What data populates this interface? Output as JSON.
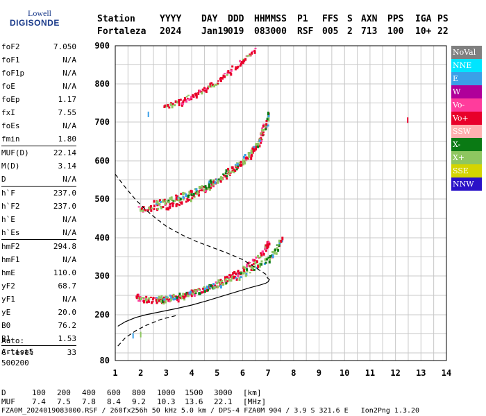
{
  "logo": {
    "line1": "Lowell",
    "line2": "DIGISONDE"
  },
  "header": {
    "labels": [
      "Station",
      "YYYY",
      "DAY",
      "DDD",
      "HHMMSS",
      "P1",
      "FFS",
      "S",
      "AXN",
      "PPS",
      "IGA",
      "PS"
    ],
    "values": [
      "Fortaleza",
      "2024",
      "Jan19",
      "019",
      "083000",
      "RSF",
      "005",
      "2",
      "713",
      "100",
      "10+",
      "22"
    ]
  },
  "params": [
    [
      [
        "foF2",
        "7.050"
      ],
      [
        "foF1",
        "N/A"
      ],
      [
        "foF1p",
        "N/A"
      ],
      [
        "foE",
        "N/A"
      ],
      [
        "foEp",
        "1.17"
      ],
      [
        "fxI",
        "7.55"
      ],
      [
        "foEs",
        "N/A"
      ],
      [
        "fmin",
        "1.80"
      ]
    ],
    [
      [
        "MUF(D)",
        "22.14"
      ],
      [
        "M(D)",
        "3.14"
      ],
      [
        "D",
        "N/A"
      ]
    ],
    [
      [
        "h`F",
        "237.0"
      ],
      [
        "h`F2",
        "237.0"
      ],
      [
        "h`E",
        "N/A"
      ],
      [
        "h`Es",
        "N/A"
      ]
    ],
    [
      [
        "hmF2",
        "294.8"
      ],
      [
        "hmF1",
        "N/A"
      ],
      [
        "hmE",
        "110.0"
      ],
      [
        "yF2",
        "68.7"
      ],
      [
        "yF1",
        "N/A"
      ],
      [
        "yE",
        "20.0"
      ],
      [
        "B0",
        "76.2"
      ],
      [
        "B1",
        "1.53"
      ]
    ],
    [
      [
        "C-level",
        "33"
      ]
    ]
  ],
  "auto": {
    "line1": "Auto:",
    "line2": "Artist5",
    "line3": "500200"
  },
  "legend": [
    {
      "label": "NoVal",
      "bg": "#808080",
      "fg": "#ffffff"
    },
    {
      "label": "NNE",
      "bg": "#00e5ff",
      "fg": "#ffffff"
    },
    {
      "label": "E",
      "bg": "#3aa0e8",
      "fg": "#ffffff"
    },
    {
      "label": "W",
      "bg": "#b0009a",
      "fg": "#ffffff"
    },
    {
      "label": "Vo-",
      "bg": "#ff3c9c",
      "fg": "#ffffff"
    },
    {
      "label": "Vo+",
      "bg": "#e8002a",
      "fg": "#ffffff"
    },
    {
      "label": "SSW",
      "bg": "#ffb0b0",
      "fg": "#ffffff"
    },
    {
      "label": "X-",
      "bg": "#0a7a14",
      "fg": "#ffffff"
    },
    {
      "label": "X+",
      "bg": "#8ec660",
      "fg": "#ffffff"
    },
    {
      "label": "SSE",
      "bg": "#d4d400",
      "fg": "#ffffff"
    },
    {
      "label": "NNW",
      "bg": "#2a12c8",
      "fg": "#ffffff"
    }
  ],
  "footer": {
    "d_label": "D",
    "d_values": [
      "100",
      "200",
      "400",
      "600",
      "800",
      "1000",
      "1500",
      "3000"
    ],
    "d_unit": "[km]",
    "muf_label": "MUF",
    "muf_values": [
      "7.4",
      "7.5",
      "7.8",
      "8.4",
      "9.2",
      "10.3",
      "13.6",
      "22.1"
    ],
    "muf_unit": "[MHz]",
    "info": "FZA0M_2024019083000.RSF / 260fx256h 50 kHz 5.0 km / DPS-4 FZA0M 904 / 3.9 S 321.6 E   Ion2Png 1.3.20"
  },
  "chart_data": {
    "type": "scatter",
    "title": "",
    "xlabel": "",
    "ylabel": "",
    "xlim": [
      1,
      14
    ],
    "ylim": [
      80,
      900
    ],
    "x_ticks": [
      1,
      2,
      3,
      4,
      5,
      6,
      7,
      8,
      9,
      10,
      11,
      12,
      13,
      14
    ],
    "y_ticks": [
      80,
      200,
      300,
      400,
      500,
      600,
      700,
      800,
      900
    ],
    "y_grid_minor_step": 50,
    "x_grid_minor_step": 0.5,
    "grid": true,
    "traces": [
      {
        "name": "F2 O-trace (1st hop)",
        "color": "#e8002a",
        "x": [
          1.8,
          2.0,
          2.4,
          2.8,
          3.2,
          3.6,
          4.0,
          4.5,
          5.0,
          5.4,
          5.8,
          6.2,
          6.6,
          6.9,
          7.0
        ],
        "y": [
          250,
          243,
          240,
          240,
          244,
          250,
          258,
          268,
          282,
          298,
          312,
          330,
          352,
          378,
          395
        ]
      },
      {
        "name": "F2 X-trace (1st hop)",
        "color": "#8ec660",
        "x": [
          2.6,
          3.0,
          3.5,
          4.0,
          4.5,
          5.0,
          5.5,
          6.0,
          6.5,
          7.0,
          7.3,
          7.5
        ],
        "y": [
          242,
          245,
          250,
          258,
          268,
          280,
          293,
          308,
          324,
          348,
          370,
          400
        ]
      },
      {
        "name": "2nd hop",
        "color": "#e8002a",
        "x": [
          1.9,
          2.4,
          3.0,
          3.5,
          4.0,
          4.5,
          5.0,
          5.5,
          6.0,
          6.4,
          6.7,
          6.8
        ],
        "y": [
          477,
          478,
          485,
          495,
          510,
          528,
          548,
          572,
          600,
          628,
          660,
          700
        ]
      },
      {
        "name": "2nd hop X",
        "color": "#8ec660",
        "x": [
          2.5,
          3.0,
          3.5,
          4.0,
          4.5,
          5.0,
          5.5,
          6.0,
          6.5,
          6.9,
          7.0
        ],
        "y": [
          495,
          500,
          508,
          520,
          535,
          555,
          578,
          605,
          640,
          690,
          730
        ]
      },
      {
        "name": "3rd hop",
        "color": "#e8002a",
        "x": [
          2.9,
          3.5,
          4.0,
          4.5,
          5.0,
          5.5,
          6.0,
          6.5
        ],
        "y": [
          745,
          755,
          770,
          788,
          808,
          835,
          865,
          895
        ]
      }
    ],
    "profile_curve": {
      "style": "solid",
      "x": [
        1.1,
        1.4,
        1.8,
        2.2,
        2.8,
        3.4,
        4.0,
        4.6,
        5.2,
        5.8,
        6.3,
        6.7,
        6.9,
        7.0,
        7.05,
        6.95
      ],
      "y": [
        170,
        182,
        193,
        200,
        208,
        216,
        225,
        236,
        248,
        260,
        270,
        277,
        281,
        285,
        291,
        296
      ]
    },
    "profile_topside": {
      "style": "dashed",
      "x": [
        1.0,
        1.4,
        1.8,
        2.2,
        2.6,
        3.0,
        3.6,
        4.2,
        4.8,
        5.4,
        6.0,
        6.5,
        6.9,
        7.0
      ],
      "y": [
        565,
        530,
        498,
        472,
        450,
        430,
        408,
        390,
        375,
        360,
        343,
        322,
        305,
        296
      ]
    },
    "lower_dashed": {
      "style": "dashed",
      "x": [
        1.1,
        1.4,
        1.8,
        2.2,
        2.8,
        3.4
      ],
      "y": [
        118,
        140,
        158,
        172,
        188,
        198
      ]
    },
    "isolated_points": [
      {
        "x": 12.48,
        "y": 705,
        "color": "#e8002a"
      },
      {
        "x": 2.3,
        "y": 720,
        "color": "#3aa0e8"
      },
      {
        "x": 1.7,
        "y": 145,
        "color": "#3aa0e8"
      },
      {
        "x": 2.0,
        "y": 148,
        "color": "#8ec660"
      }
    ]
  }
}
